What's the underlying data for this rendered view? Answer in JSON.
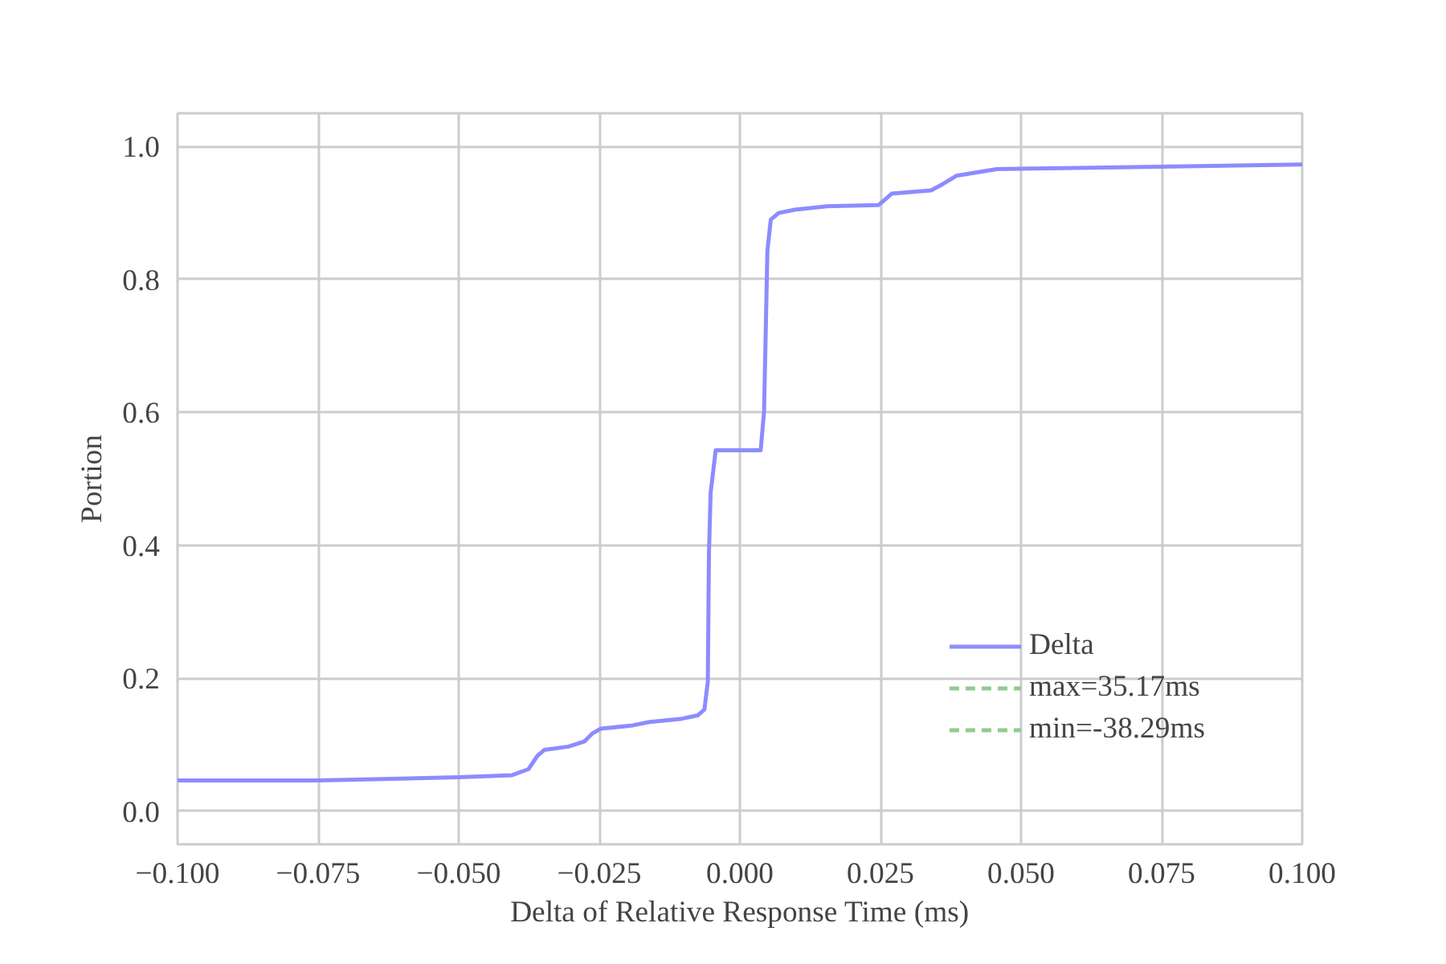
{
  "chart_data": {
    "type": "line",
    "xlabel": "Delta of Relative Response Time (ms)",
    "ylabel": "Portion",
    "xlim": [
      -0.1,
      0.1
    ],
    "xticks": [
      {
        "value": -0.1,
        "label": "−0.100"
      },
      {
        "value": -0.075,
        "label": "−0.075"
      },
      {
        "value": -0.05,
        "label": "−0.050"
      },
      {
        "value": -0.025,
        "label": "−0.025"
      },
      {
        "value": 0,
        "label": "0.000"
      },
      {
        "value": 0.025,
        "label": "0.025"
      },
      {
        "value": 0.05,
        "label": "0.050"
      },
      {
        "value": 0.075,
        "label": "0.075"
      },
      {
        "value": 0.1,
        "label": "0.100"
      }
    ],
    "ylim": [
      -0.05,
      1.05
    ],
    "yticks": [
      {
        "value": 0,
        "label": "0.0"
      },
      {
        "value": 0.2,
        "label": "0.2"
      },
      {
        "value": 0.4,
        "label": "0.4"
      },
      {
        "value": 0.6,
        "label": "0.6"
      },
      {
        "value": 0.8,
        "label": "0.8"
      },
      {
        "value": 1,
        "label": "1.0"
      }
    ],
    "grid": true,
    "legend": "bottom right",
    "series": [
      {
        "name": "Delta",
        "color": "#8c8cff",
        "line_style": "solid",
        "x": [
          -0.1,
          -0.075,
          -0.05,
          -0.0405,
          -0.0376,
          -0.036,
          -0.0348,
          -0.0305,
          -0.0276,
          -0.0262,
          -0.0247,
          -0.019,
          -0.0161,
          -0.0103,
          -0.0075,
          -0.0063,
          -0.0057,
          -0.0055,
          -0.0052,
          -0.0043,
          0.0037,
          0.0043,
          0.0049,
          0.0055,
          0.0069,
          0.0098,
          0.0155,
          0.0247,
          0.027,
          0.034,
          0.0362,
          0.0385,
          0.0457,
          0.063,
          0.1
        ],
        "values": [
          0.046,
          0.046,
          0.051,
          0.054,
          0.063,
          0.083,
          0.092,
          0.097,
          0.105,
          0.117,
          0.124,
          0.129,
          0.134,
          0.139,
          0.144,
          0.153,
          0.195,
          0.387,
          0.479,
          0.543,
          0.543,
          0.601,
          0.844,
          0.89,
          0.9,
          0.905,
          0.91,
          0.912,
          0.929,
          0.934,
          0.944,
          0.956,
          0.966,
          0.968,
          0.973
        ]
      },
      {
        "name": "max=35.17ms",
        "color": "#8fcc8f",
        "line_style": "dashed",
        "values": [
          null
        ]
      },
      {
        "name": "min=-38.29ms",
        "color": "#8fcc8f",
        "line_style": "dashed",
        "values": [
          null
        ]
      }
    ]
  }
}
